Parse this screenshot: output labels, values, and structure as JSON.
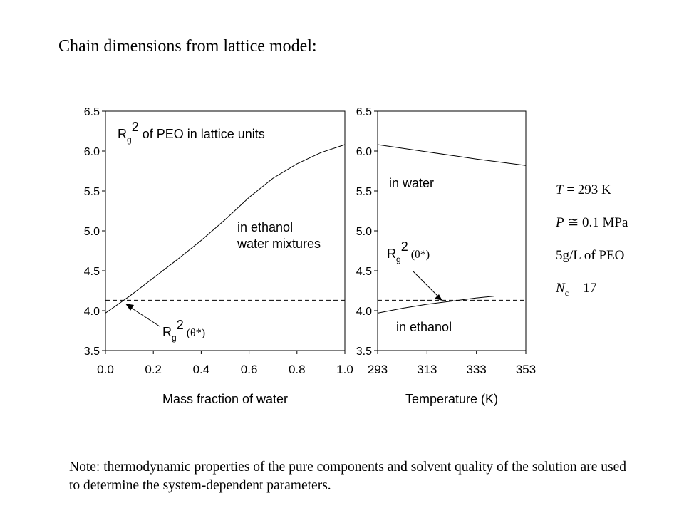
{
  "slide": {
    "title": "Chain dimensions from lattice model:",
    "note": "Note: thermodynamic properties of the pure components and solvent quality of the solution are used to determine the system-dependent parameters."
  },
  "parameters": {
    "T": {
      "var": "T",
      "text": " = 293 K"
    },
    "P": {
      "var": "P",
      "text": " ≅ 0.1 MPa"
    },
    "conc": {
      "text": "5g/L of PEO"
    },
    "Nc": {
      "var": "N",
      "sub": "c",
      "text": " = 17"
    }
  },
  "chart_data": [
    {
      "type": "line",
      "xlabel": "Mass fraction of water",
      "ylabel": "",
      "xlim": [
        0.0,
        1.0
      ],
      "ylim": [
        3.5,
        6.5
      ],
      "xticks": [
        "0.0",
        "0.2",
        "0.4",
        "0.6",
        "0.8",
        "1.0"
      ],
      "yticks": [
        "3.5",
        "4.0",
        "4.5",
        "5.0",
        "5.5",
        "6.0",
        "6.5"
      ],
      "grid": false,
      "annotations": [
        {
          "text_main": "R",
          "text_sub": "g",
          "text_sup": "2",
          "text_tail": " of PEO in lattice units"
        },
        {
          "text_line1": "in ethanol",
          "text_line2": "water mixtures"
        },
        {
          "text_main": "R",
          "text_sub": "g",
          "text_sup": "2",
          "text_tail": " (θ*)"
        }
      ],
      "series": [
        {
          "style": "solid",
          "x": [
            0.0,
            0.1,
            0.2,
            0.3,
            0.4,
            0.5,
            0.6,
            0.7,
            0.8,
            0.9,
            1.0
          ],
          "y": [
            3.97,
            4.18,
            4.41,
            4.64,
            4.88,
            5.14,
            5.42,
            5.66,
            5.84,
            5.98,
            6.08
          ]
        },
        {
          "style": "dashed",
          "x": [
            0.0,
            1.0
          ],
          "y": [
            4.13,
            4.13
          ]
        }
      ]
    },
    {
      "type": "line",
      "xlabel": "Temperature (K)",
      "ylabel": "",
      "xlim": [
        293,
        353
      ],
      "ylim": [
        3.5,
        6.5
      ],
      "xticks": [
        "293",
        "313",
        "333",
        "353"
      ],
      "yticks": [
        "3.5",
        "4.0",
        "4.5",
        "5.0",
        "5.5",
        "6.0",
        "6.5"
      ],
      "grid": false,
      "annotations": [
        {
          "text": "in water"
        },
        {
          "text_main": "R",
          "text_sub": "g",
          "text_sup": "2",
          "text_tail": " (θ*)"
        },
        {
          "text": "in ethanol"
        }
      ],
      "series": [
        {
          "name": "in water",
          "style": "solid",
          "x": [
            293,
            313,
            333,
            353
          ],
          "y": [
            6.08,
            5.99,
            5.9,
            5.82
          ]
        },
        {
          "name": "in ethanol",
          "style": "solid",
          "x": [
            293,
            303,
            313,
            323,
            333,
            340
          ],
          "y": [
            3.97,
            4.03,
            4.08,
            4.12,
            4.16,
            4.18
          ]
        },
        {
          "style": "dashed",
          "x": [
            293,
            353
          ],
          "y": [
            4.13,
            4.13
          ]
        }
      ]
    }
  ]
}
